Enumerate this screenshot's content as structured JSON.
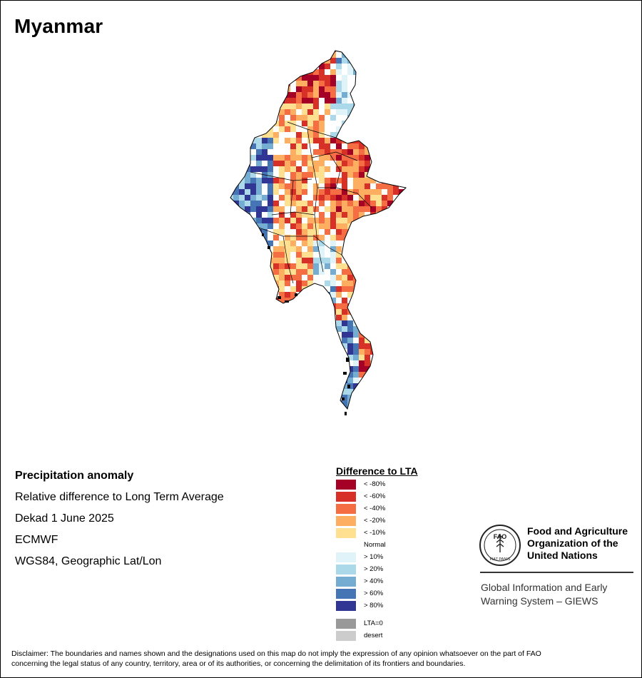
{
  "map": {
    "title": "Myanmar"
  },
  "info": {
    "line1": "Precipitation anomaly",
    "line2": "Relative difference to Long Term Average",
    "line3": "Dekad 1 June 2025",
    "line4": "ECMWF",
    "line5": "WGS84, Geographic Lat/Lon"
  },
  "legend": {
    "title": "Difference to LTA",
    "items": [
      {
        "label": "< -80%",
        "color": "#a50026"
      },
      {
        "label": "< -60%",
        "color": "#d73027"
      },
      {
        "label": "< -40%",
        "color": "#f46d43"
      },
      {
        "label": "< -20%",
        "color": "#fdae61"
      },
      {
        "label": "< -10%",
        "color": "#fee090"
      },
      {
        "label": "Normal",
        "color": "#ffffff"
      },
      {
        "label": "> 10%",
        "color": "#e0f3f8"
      },
      {
        "label": "> 20%",
        "color": "#abd9e9"
      },
      {
        "label": "> 40%",
        "color": "#74add1"
      },
      {
        "label": "> 60%",
        "color": "#4575b4"
      },
      {
        "label": "> 80%",
        "color": "#313695"
      }
    ],
    "extra": [
      {
        "label": "LTA=0",
        "color": "#999999"
      },
      {
        "label": "desert",
        "color": "#cccccc"
      }
    ]
  },
  "org": {
    "name_line1": "Food and Agriculture",
    "name_line2": "Organization of the",
    "name_line3": "United Nations",
    "emblem_text": "FAO",
    "motto": "FIAT PANIS",
    "system_line1": "Global Information and Early",
    "system_line2": "Warning System – GIEWS"
  },
  "disclaimer": {
    "line1": "Disclaimer: The boundaries and names shown and the designations used on this map do not imply the expression of any opinion whatsoever on the part of FAO",
    "line2": "concerning the legal status of any country, territory, area or of its authorities, or concerning the delimitation of its frontiers and boundaries."
  }
}
